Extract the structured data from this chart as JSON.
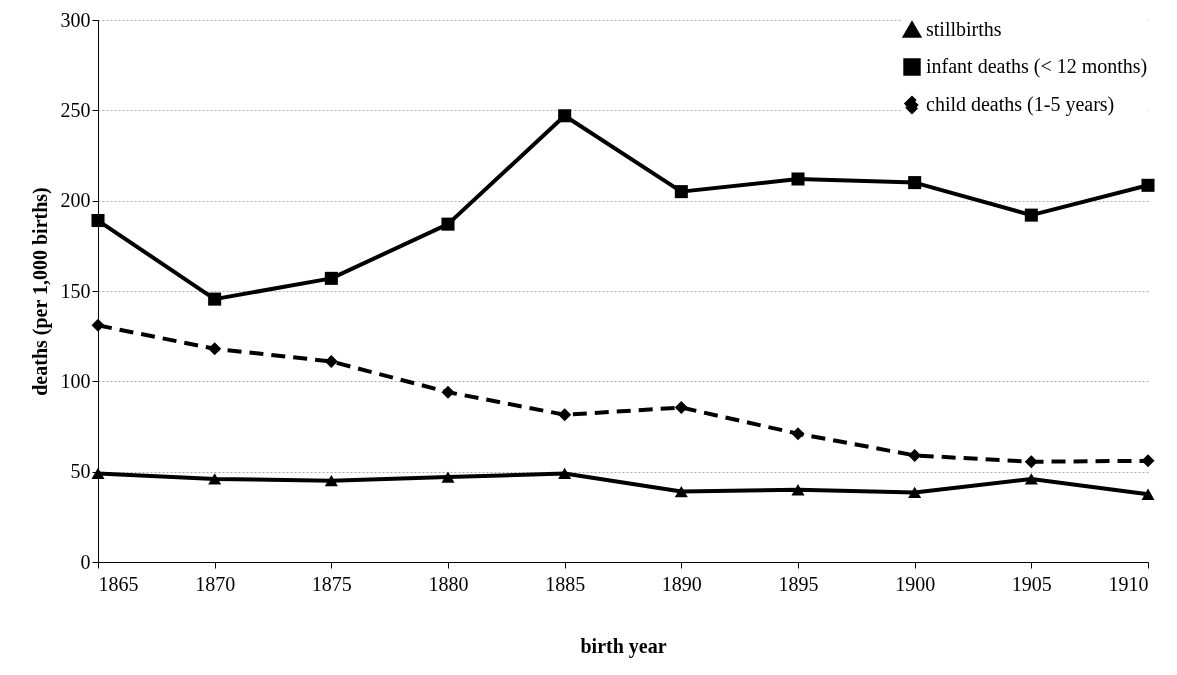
{
  "chart_data": {
    "type": "line",
    "xlabel": "birth year",
    "ylabel": "deaths (per 1,000 births)",
    "x": [
      1865,
      1870,
      1875,
      1880,
      1885,
      1890,
      1895,
      1900,
      1905,
      1910
    ],
    "series": [
      {
        "name": "stillbirths",
        "color": "#000000",
        "marker": "triangle",
        "line_style": "solid",
        "values": [
          49,
          46,
          45,
          47,
          49,
          39,
          40,
          38.5,
          46,
          37.5
        ]
      },
      {
        "name": "infant deaths (< 12 months)",
        "color": "#000000",
        "marker": "square",
        "line_style": "solid",
        "values": [
          189,
          145.5,
          157,
          187,
          247,
          205,
          212,
          210,
          192,
          208.5
        ]
      },
      {
        "name": "child deaths (1-5 years)",
        "color": "#000000",
        "marker": "diamond",
        "line_style": "dashed",
        "values": [
          131,
          118,
          111,
          94,
          81.5,
          85.5,
          71,
          59,
          55.5,
          56
        ]
      }
    ],
    "xlim": [
      1865,
      1910
    ],
    "xticks": [
      1865,
      1870,
      1875,
      1880,
      1885,
      1890,
      1895,
      1900,
      1905,
      1910
    ],
    "ylim": [
      0,
      300
    ],
    "yticks": [
      0,
      50,
      100,
      150,
      200,
      250,
      300
    ],
    "grid": "y",
    "legend": "top right"
  }
}
